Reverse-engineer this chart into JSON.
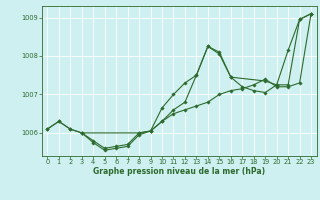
{
  "title": "Graphe pression niveau de la mer (hPa)",
  "background_color": "#cef0f0",
  "grid_color": "#ffffff",
  "line_color": "#2d6a2d",
  "xlim": [
    -0.5,
    23.5
  ],
  "ylim": [
    1005.4,
    1009.3
  ],
  "yticks": [
    1006,
    1007,
    1008,
    1009
  ],
  "xticks": [
    0,
    1,
    2,
    3,
    4,
    5,
    6,
    7,
    8,
    9,
    10,
    11,
    12,
    13,
    14,
    15,
    16,
    17,
    18,
    19,
    20,
    21,
    22,
    23
  ],
  "series1": {
    "x": [
      0,
      1,
      2,
      3,
      4,
      5,
      6,
      7,
      8,
      9,
      10,
      11,
      12,
      13,
      14,
      15,
      16,
      17,
      18,
      19,
      20,
      21,
      22,
      23
    ],
    "y": [
      1006.1,
      1006.3,
      1006.1,
      1006.0,
      1005.8,
      1005.6,
      1005.65,
      1005.7,
      1006.0,
      1006.05,
      1006.3,
      1006.5,
      1006.6,
      1006.7,
      1006.8,
      1007.0,
      1007.1,
      1007.15,
      1007.25,
      1007.4,
      1007.2,
      1007.2,
      1007.3,
      1009.1
    ]
  },
  "series2": {
    "x": [
      0,
      1,
      2,
      3,
      4,
      5,
      6,
      7,
      8,
      9,
      10,
      11,
      12,
      13,
      14,
      15,
      16,
      17,
      18,
      19,
      20,
      21,
      22,
      23
    ],
    "y": [
      1006.1,
      1006.3,
      1006.1,
      1006.0,
      1005.75,
      1005.55,
      1005.6,
      1005.65,
      1005.95,
      1006.05,
      1006.65,
      1007.0,
      1007.3,
      1007.5,
      1008.25,
      1008.1,
      1007.45,
      1007.2,
      1007.1,
      1007.05,
      1007.25,
      1008.15,
      1008.95,
      1009.1
    ]
  },
  "series3": {
    "x": [
      3,
      8,
      9,
      10,
      11,
      12,
      13,
      14,
      15,
      16,
      19,
      20,
      21,
      22,
      23
    ],
    "y": [
      1006.0,
      1006.0,
      1006.05,
      1006.3,
      1006.6,
      1006.8,
      1007.5,
      1008.25,
      1008.05,
      1007.45,
      1007.35,
      1007.25,
      1007.25,
      1008.95,
      1009.1
    ]
  },
  "title_fontsize": 5.5,
  "tick_fontsize": 4.8,
  "marker_size": 1.8,
  "line_width": 0.8
}
